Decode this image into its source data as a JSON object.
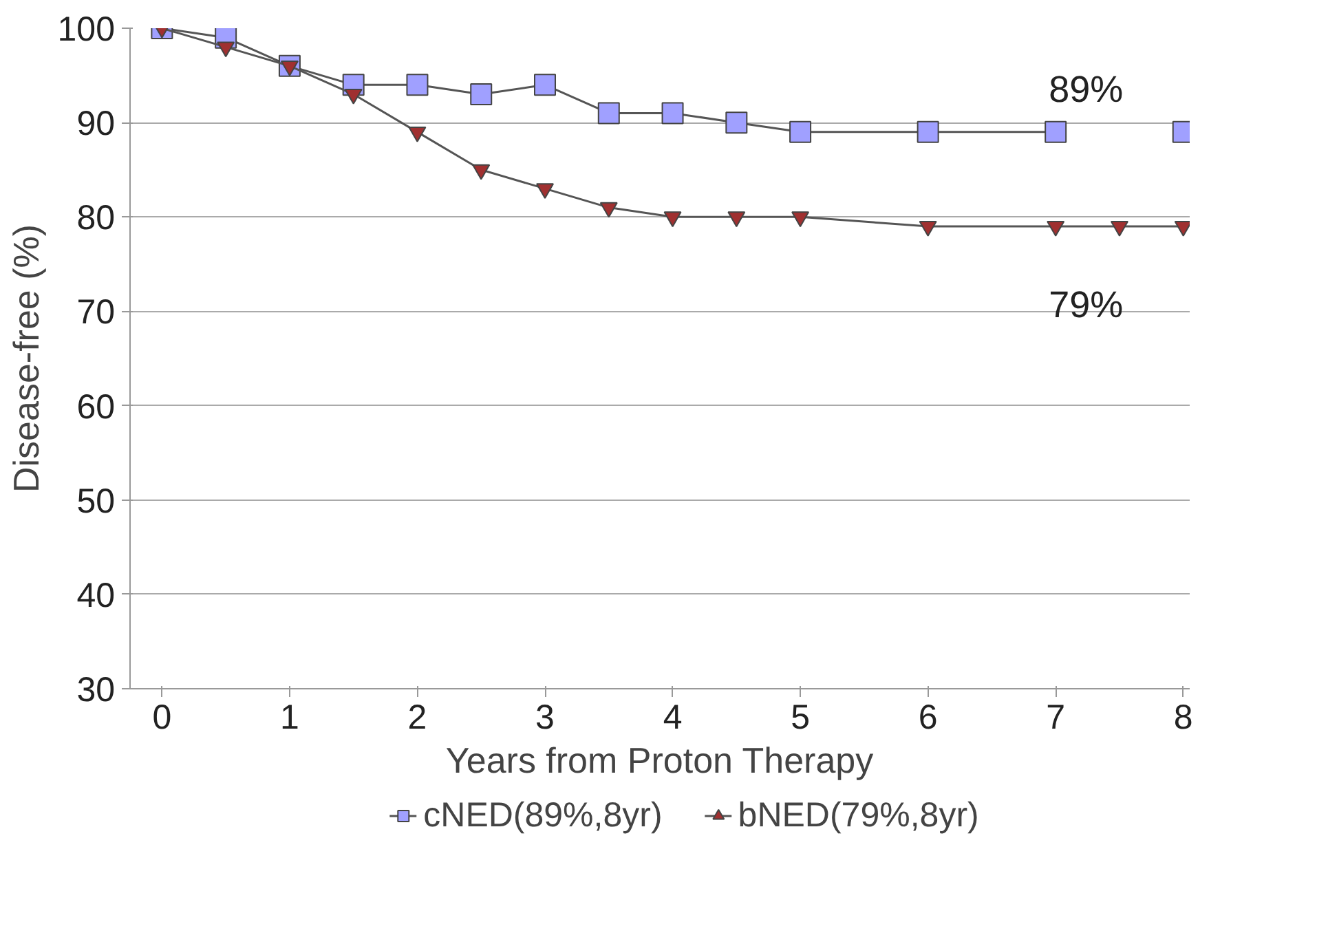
{
  "chart_data": {
    "type": "line",
    "xlabel": "Years from Proton Therapy",
    "ylabel": "Disease-free (%)",
    "xlim": [
      -0.25,
      8.05
    ],
    "ylim": [
      30,
      100
    ],
    "xticks": [
      0,
      1,
      2,
      3,
      4,
      5,
      6,
      7,
      8
    ],
    "yticks": [
      30,
      40,
      50,
      60,
      70,
      80,
      90,
      100
    ],
    "grid": "y",
    "legend": "bottom",
    "series": [
      {
        "name": "cNED(89%,8yr)",
        "color": "#a0a0ff",
        "marker": "square",
        "x": [
          0,
          0.5,
          1,
          1.5,
          2,
          2.5,
          3,
          3.5,
          4,
          4.5,
          5,
          6,
          7,
          7.5,
          8
        ],
        "values": [
          100,
          99,
          96,
          94,
          94,
          93,
          94,
          91,
          91,
          90,
          89,
          89,
          89,
          null,
          89
        ]
      },
      {
        "name": "bNED(79%,8yr)",
        "color": "#a03030",
        "marker": "triangle",
        "x": [
          0,
          0.5,
          1,
          1.5,
          2,
          2.5,
          3,
          3.5,
          4,
          4.5,
          5,
          6,
          7,
          7.5,
          8
        ],
        "values": [
          100,
          98,
          96,
          93,
          89,
          85,
          83,
          81,
          80,
          80,
          80,
          79,
          79,
          79,
          79
        ]
      }
    ],
    "annotations": [
      "89%",
      "79%"
    ]
  }
}
